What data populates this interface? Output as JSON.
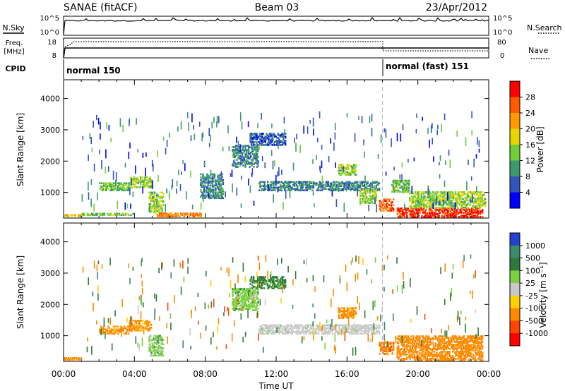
{
  "header": {
    "station": "SANAE (fitACF)",
    "beam": "Beam 03",
    "date": "23/Apr/2012"
  },
  "noise_panel": {
    "left_label": "N.Sky",
    "right_label": "N.Search",
    "left_ticks": [
      "10^5",
      "10^0"
    ],
    "right_ticks": [
      "10^5",
      "10^0"
    ]
  },
  "freq_panel": {
    "left_label_line1": "Freq.",
    "left_label_line2": "[MHz]",
    "right_label": "Nave",
    "left_ticks": [
      18,
      8
    ],
    "right_ticks": [
      80,
      0
    ]
  },
  "cpid": {
    "label": "CPID",
    "modes": [
      {
        "name": "normal 150",
        "start_hour": 0
      },
      {
        "name": "normal (fast) 151",
        "start_hour": 18
      }
    ]
  },
  "chart_data": [
    {
      "type": "heatmap",
      "name": "power-panel",
      "ylabel": "Slant Range [km]",
      "xlabel": "Time UT",
      "x_ticks": [
        "00:00",
        "04:00",
        "08:00",
        "12:00",
        "16:00",
        "20:00",
        "00:00"
      ],
      "xlim_hours": [
        0,
        24
      ],
      "yticks": [
        1000,
        2000,
        3000,
        4000
      ],
      "ylim": [
        180,
        4600
      ],
      "colorbar": {
        "label": "Power [dB]",
        "ticks": [
          4,
          8,
          12,
          16,
          20,
          24,
          28
        ],
        "colors": [
          "#0000ff",
          "#3355bb",
          "#3b9a6b",
          "#6fce3a",
          "#e8d500",
          "#ff9900",
          "#ff5a00",
          "#ff0000"
        ],
        "range": [
          0,
          30
        ]
      },
      "features": [
        {
          "time": [
            0.0,
            1.0
          ],
          "range": [
            220,
            300
          ],
          "value": 18
        },
        {
          "time": [
            1.0,
            4.0
          ],
          "range": [
            260,
            320
          ],
          "value": 12
        },
        {
          "time": [
            2.0,
            3.7
          ],
          "range": [
            1050,
            1300
          ],
          "value": 12
        },
        {
          "time": [
            3.7,
            4.9
          ],
          "range": [
            1150,
            1500
          ],
          "value": 14
        },
        {
          "time": [
            4.8,
            5.6
          ],
          "range": [
            350,
            1000
          ],
          "value": 14
        },
        {
          "time": [
            5.2,
            7.8
          ],
          "range": [
            220,
            320
          ],
          "value": 22
        },
        {
          "time": [
            7.7,
            9.0
          ],
          "range": [
            800,
            1600
          ],
          "value": 8
        },
        {
          "time": [
            9.5,
            11.0
          ],
          "range": [
            1800,
            2500
          ],
          "value": 8
        },
        {
          "time": [
            10.5,
            12.5
          ],
          "range": [
            2500,
            2900
          ],
          "value": 6
        },
        {
          "time": [
            11.0,
            17.8
          ],
          "range": [
            1050,
            1350
          ],
          "value": 8
        },
        {
          "time": [
            15.5,
            16.5
          ],
          "range": [
            1550,
            1900
          ],
          "value": 14
        },
        {
          "time": [
            16.7,
            17.6
          ],
          "range": [
            650,
            1100
          ],
          "value": 14
        },
        {
          "time": [
            17.8,
            18.6
          ],
          "range": [
            400,
            800
          ],
          "value": 24
        },
        {
          "time": [
            18.5,
            19.5
          ],
          "range": [
            1000,
            1400
          ],
          "value": 12
        },
        {
          "time": [
            18.8,
            23.6
          ],
          "range": [
            200,
            500
          ],
          "value": 27
        },
        {
          "time": [
            19.5,
            23.8
          ],
          "range": [
            500,
            1000
          ],
          "value": 14
        }
      ]
    },
    {
      "type": "heatmap",
      "name": "velocity-panel",
      "ylabel": "Slant Range [km]",
      "xlabel": "Time UT",
      "x_ticks": [
        "00:00",
        "04:00",
        "08:00",
        "12:00",
        "16:00",
        "20:00",
        "00:00"
      ],
      "xlim_hours": [
        0,
        24
      ],
      "yticks": [
        1000,
        2000,
        3000,
        4000
      ],
      "ylim": [
        180,
        4600
      ],
      "colorbar": {
        "label": "Velocity [m s⁻¹]",
        "ticks": [
          1000,
          500,
          100,
          25,
          -25,
          -100,
          -500,
          -1000
        ],
        "colors": [
          "#2244cc",
          "#3b8a6b",
          "#2e7a3a",
          "#7ad040",
          "#c8c8c8",
          "#ffd000",
          "#ff8a00",
          "#ff4500",
          "#ff0000"
        ]
      },
      "features": [
        {
          "time": [
            0.0,
            1.0
          ],
          "range": [
            220,
            300
          ],
          "value": -300
        },
        {
          "time": [
            2.0,
            3.7
          ],
          "range": [
            1050,
            1300
          ],
          "value": -200
        },
        {
          "time": [
            3.7,
            4.9
          ],
          "range": [
            1150,
            1500
          ],
          "value": -150
        },
        {
          "time": [
            4.8,
            5.6
          ],
          "range": [
            350,
            1000
          ],
          "value": 60
        },
        {
          "time": [
            9.5,
            11.0
          ],
          "range": [
            1800,
            2500
          ],
          "value": 60
        },
        {
          "time": [
            10.5,
            12.5
          ],
          "range": [
            2500,
            2900
          ],
          "value": 150
        },
        {
          "time": [
            11.0,
            17.8
          ],
          "range": [
            1050,
            1350
          ],
          "value": 5
        },
        {
          "time": [
            15.5,
            16.5
          ],
          "range": [
            1550,
            1900
          ],
          "value": -200
        },
        {
          "time": [
            17.8,
            18.6
          ],
          "range": [
            400,
            800
          ],
          "value": -400
        },
        {
          "time": [
            18.8,
            23.6
          ],
          "range": [
            200,
            1000
          ],
          "value": -300
        }
      ]
    }
  ]
}
